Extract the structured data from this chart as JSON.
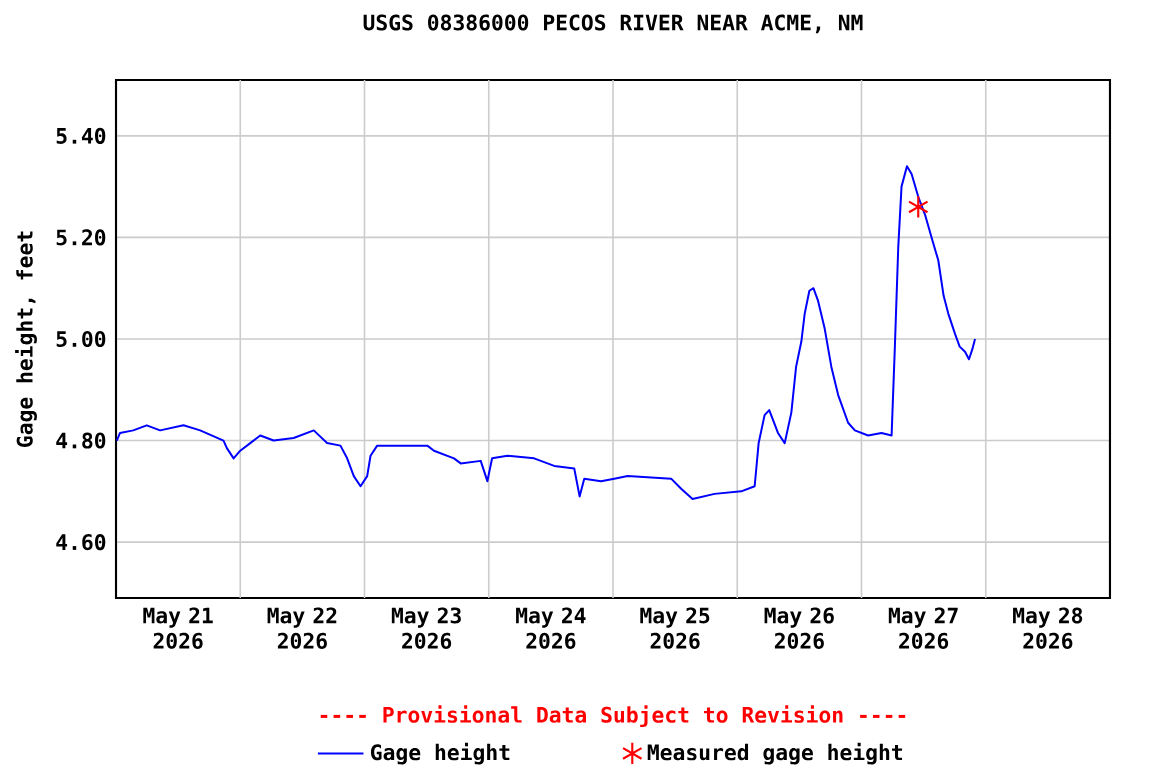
{
  "chart_data": {
    "type": "line",
    "title": "USGS 08386000 PECOS RIVER NEAR ACME, NM",
    "ylabel": "Gage height, feet",
    "annotations": [
      "---- Provisional Data Subject to Revision ----"
    ],
    "xlim": [
      "2026-05-21T00:00",
      "2026-05-29T00:00"
    ],
    "xticks": [
      {
        "value": "2026-05-21T12:00",
        "label": "May 21 2026"
      },
      {
        "value": "2026-05-22T12:00",
        "label": "May 22 2026"
      },
      {
        "value": "2026-05-23T12:00",
        "label": "May 23 2026"
      },
      {
        "value": "2026-05-24T12:00",
        "label": "May 24 2026"
      },
      {
        "value": "2026-05-25T12:00",
        "label": "May 25 2026"
      },
      {
        "value": "2026-05-26T12:00",
        "label": "May 26 2026"
      },
      {
        "value": "2026-05-27T12:00",
        "label": "May 27 2026"
      },
      {
        "value": "2026-05-28T12:00",
        "label": "May 28 2026"
      },
      {
        "value": "2026-05-22T00:00",
        "label": null
      },
      {
        "value": "2026-05-23T00:00",
        "label": null
      },
      {
        "value": "2026-05-24T00:00",
        "label": null
      },
      {
        "value": "2026-05-25T00:00",
        "label": null
      },
      {
        "value": "2026-05-26T00:00",
        "label": null
      },
      {
        "value": "2026-05-27T00:00",
        "label": null
      },
      {
        "value": "2026-05-28T00:00",
        "label": null
      }
    ],
    "ylim": [
      4.49,
      5.51
    ],
    "yticks": [
      {
        "value": 4.6,
        "label": "4.60"
      },
      {
        "value": 4.8,
        "label": "4.80"
      },
      {
        "value": 5.0,
        "label": "5.00"
      },
      {
        "value": 5.2,
        "label": "5.20"
      },
      {
        "value": 5.4,
        "label": "5.40"
      }
    ],
    "grid": true,
    "legend": "bottom",
    "series": [
      {
        "name": "Gage height",
        "color": "#0000ff",
        "marker": "none",
        "line_style": "solid",
        "x": [
          "2026-05-21T00:10",
          "2026-05-21T00:46",
          "2026-05-21T03:20",
          "2026-05-21T05:56",
          "2026-05-21T08:31",
          "2026-05-21T13:02",
          "2026-05-21T16:15",
          "2026-05-21T20:46",
          "2026-05-21T21:25",
          "2026-05-21T22:43",
          "2026-05-22T00:00",
          "2026-05-22T01:56",
          "2026-05-22T03:52",
          "2026-05-22T06:27",
          "2026-05-22T10:19",
          "2026-05-22T14:12",
          "2026-05-22T16:46",
          "2026-05-22T19:21",
          "2026-05-22T20:39",
          "2026-05-22T21:56",
          "2026-05-22T23:14",
          "2026-05-23T00:31",
          "2026-05-23T01:10",
          "2026-05-23T02:27",
          "2026-05-23T04:23",
          "2026-05-23T08:16",
          "2026-05-23T12:08",
          "2026-05-23T13:25",
          "2026-05-23T17:17",
          "2026-05-23T18:35",
          "2026-05-23T22:27",
          "2026-05-23T23:44",
          "2026-05-24T00:39",
          "2026-05-24T03:37",
          "2026-05-24T08:46",
          "2026-05-24T12:39",
          "2026-05-24T16:31",
          "2026-05-24T17:33",
          "2026-05-24T18:27",
          "2026-05-24T21:41",
          "2026-05-25T00:15",
          "2026-05-25T02:50",
          "2026-05-25T11:14",
          "2026-05-25T13:10",
          "2026-05-25T15:22",
          "2026-05-25T19:37",
          "2026-05-26T00:47",
          "2026-05-26T03:22",
          "2026-05-26T04:08",
          "2026-05-26T05:17",
          "2026-05-26T06:11",
          "2026-05-26T07:52",
          "2026-05-26T09:10",
          "2026-05-26T10:27",
          "2026-05-26T11:22",
          "2026-05-26T12:23",
          "2026-05-26T13:02",
          "2026-05-26T13:56",
          "2026-05-26T14:43",
          "2026-05-26T15:37",
          "2026-05-26T16:54",
          "2026-05-26T18:11",
          "2026-05-26T19:29",
          "2026-05-26T21:25",
          "2026-05-26T22:43",
          "2026-05-27T01:17",
          "2026-05-27T03:52",
          "2026-05-27T05:49",
          "2026-05-27T06:27",
          "2026-05-27T07:06",
          "2026-05-27T07:44",
          "2026-05-27T08:47",
          "2026-05-27T09:41",
          "2026-05-27T10:58",
          "2026-05-27T12:16",
          "2026-05-27T13:49",
          "2026-05-27T14:50",
          "2026-05-27T15:52",
          "2026-05-27T16:46",
          "2026-05-27T18:04",
          "2026-05-27T18:58",
          "2026-05-27T20:00",
          "2026-05-27T20:46",
          "2026-05-27T21:25",
          "2026-05-27T21:56"
        ],
        "values": [
          4.8,
          4.815,
          4.82,
          4.83,
          4.82,
          4.83,
          4.82,
          4.8,
          4.785,
          4.765,
          4.78,
          4.795,
          4.81,
          4.8,
          4.805,
          4.82,
          4.795,
          4.79,
          4.765,
          4.73,
          4.71,
          4.73,
          4.77,
          4.79,
          4.79,
          4.79,
          4.79,
          4.78,
          4.765,
          4.755,
          4.76,
          4.72,
          4.765,
          4.77,
          4.765,
          4.75,
          4.745,
          4.69,
          4.725,
          4.72,
          4.725,
          4.73,
          4.725,
          4.705,
          4.685,
          4.695,
          4.7,
          4.71,
          4.795,
          4.85,
          4.86,
          4.815,
          4.795,
          4.855,
          4.945,
          4.995,
          5.05,
          5.095,
          5.1,
          5.075,
          5.02,
          4.945,
          4.89,
          4.835,
          4.82,
          4.81,
          4.815,
          4.81,
          4.985,
          5.18,
          5.3,
          5.34,
          5.325,
          5.28,
          5.245,
          5.19,
          5.155,
          5.085,
          5.05,
          5.01,
          4.985,
          4.975,
          4.96,
          4.98,
          5.0
        ]
      },
      {
        "name": "Measured gage height",
        "type": "scatter",
        "color": "#ff0000",
        "marker": "cross",
        "x": [
          "2026-05-27T10:58"
        ],
        "values": [
          5.26
        ]
      }
    ]
  }
}
